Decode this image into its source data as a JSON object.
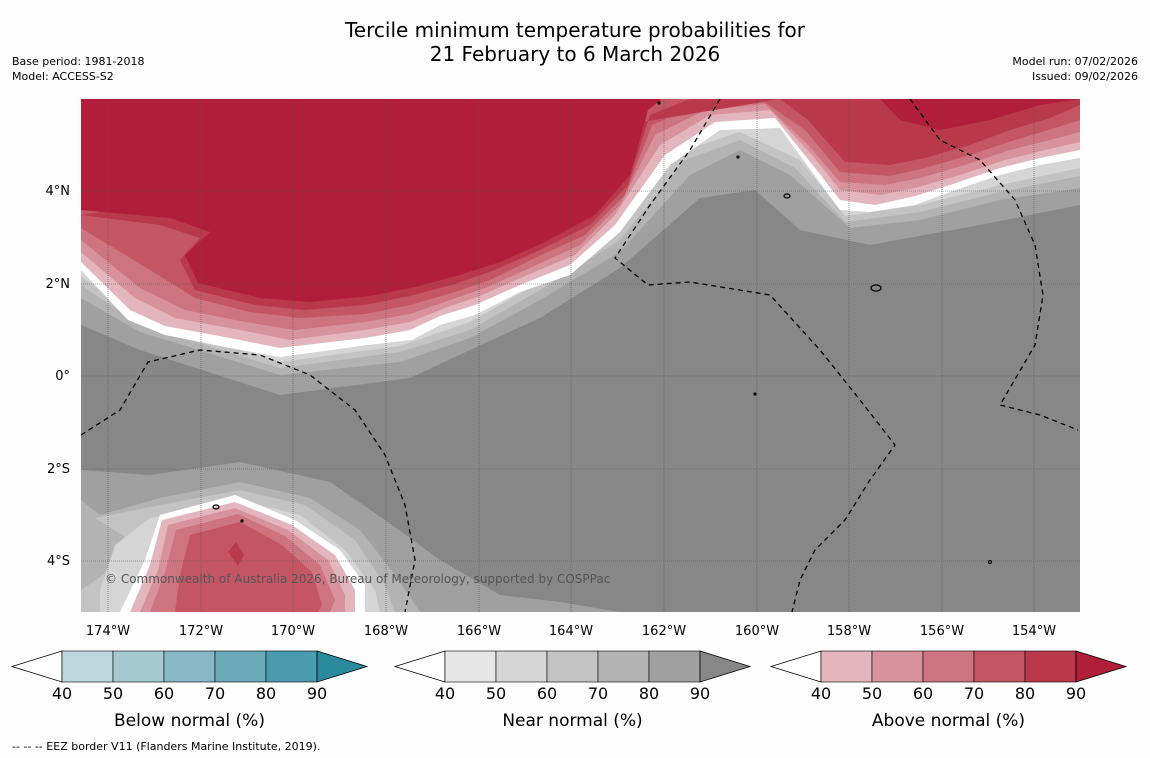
{
  "title": {
    "line1": "Tercile minimum temperature probabilities for",
    "line2": "21 February to 6 March 2026"
  },
  "meta_left": {
    "base_period": "Base period: 1981-2018",
    "model": "Model: ACCESS-S2"
  },
  "meta_right": {
    "model_run": "Model run: 07/02/2026",
    "issued": "Issued: 09/02/2026"
  },
  "map": {
    "copyright": "© Commonwealth of Australia 2026, Bureau of Meteorology, supported by COSPPac",
    "lat_labels": [
      "4°N",
      "2°N",
      "0°",
      "2°S",
      "4°S"
    ],
    "lon_labels": [
      "174°W",
      "172°W",
      "170°W",
      "168°W",
      "166°W",
      "164°W",
      "162°W",
      "160°W",
      "158°W",
      "156°W",
      "154°W"
    ]
  },
  "colorbars": [
    {
      "label": "Below normal (%)",
      "ticks": [
        "40",
        "50",
        "60",
        "70",
        "80",
        "90"
      ],
      "colors": [
        "#ffffff",
        "#bdd6de",
        "#a5c9d1",
        "#88b8c5",
        "#6aa9b8",
        "#4a9bad",
        "#2a8a9e"
      ]
    },
    {
      "label": "Near normal (%)",
      "ticks": [
        "40",
        "50",
        "60",
        "70",
        "80",
        "90"
      ],
      "colors": [
        "#ffffff",
        "#e6e6e6",
        "#d5d5d5",
        "#c3c3c3",
        "#b3b3b3",
        "#a0a0a0",
        "#878787"
      ]
    },
    {
      "label": "Above normal (%)",
      "ticks": [
        "40",
        "50",
        "60",
        "70",
        "80",
        "90"
      ],
      "colors": [
        "#ffffff",
        "#e2b6bc",
        "#d8929c",
        "#cd7480",
        "#c45664",
        "#b9394b",
        "#b11e39"
      ]
    }
  ],
  "footer": {
    "legend_text": "--  --  -- EEZ border V11 (Flanders Marine Institute, 2019)."
  }
}
